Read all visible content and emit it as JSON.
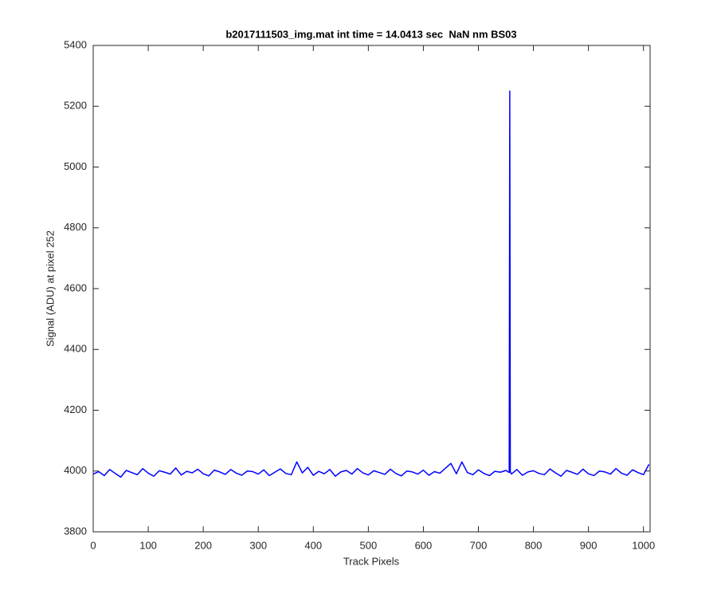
{
  "chart_data": {
    "type": "line",
    "title": "b2017111503_img.mat int time = 14.0413 sec  NaN nm BS03",
    "xlabel": "Track Pixels",
    "ylabel": "Signal (ADU) at pixel 252",
    "x": [
      0,
      10,
      20,
      30,
      40,
      50,
      60,
      70,
      80,
      90,
      100,
      110,
      120,
      130,
      140,
      150,
      160,
      170,
      180,
      190,
      200,
      210,
      220,
      230,
      240,
      250,
      260,
      270,
      280,
      290,
      300,
      310,
      320,
      330,
      340,
      350,
      360,
      370,
      380,
      390,
      400,
      410,
      420,
      430,
      440,
      450,
      460,
      470,
      480,
      490,
      500,
      510,
      520,
      530,
      540,
      550,
      560,
      570,
      580,
      590,
      600,
      610,
      620,
      630,
      640,
      650,
      660,
      670,
      680,
      690,
      700,
      710,
      720,
      730,
      740,
      750,
      756,
      757,
      758,
      760,
      770,
      780,
      790,
      800,
      810,
      820,
      830,
      840,
      850,
      860,
      870,
      880,
      890,
      900,
      910,
      920,
      930,
      940,
      950,
      960,
      970,
      980,
      990,
      1000,
      1010
    ],
    "series": [
      {
        "name": "signal",
        "color": "#0000ff",
        "values": [
          3990,
          3998,
          3985,
          4005,
          3992,
          3980,
          4002,
          3995,
          3988,
          4008,
          3993,
          3983,
          4001,
          3996,
          3990,
          4010,
          3987,
          3999,
          3994,
          4006,
          3991,
          3984,
          4003,
          3997,
          3989,
          4005,
          3993,
          3986,
          4000,
          3998,
          3990,
          4004,
          3985,
          3996,
          4007,
          3992,
          3988,
          4030,
          3994,
          4012,
          3986,
          3999,
          3991,
          4005,
          3983,
          3997,
          4002,
          3990,
          4008,
          3994,
          3987,
          4001,
          3995,
          3989,
          4006,
          3992,
          3984,
          4000,
          3997,
          3990,
          4003,
          3986,
          3998,
          3993,
          4009,
          4025,
          3991,
          4030,
          3995,
          3988,
          4004,
          3992,
          3985,
          3999,
          3996,
          4002,
          3995,
          5250,
          3998,
          3990,
          4005,
          3986,
          3997,
          4001,
          3992,
          3988,
          4007,
          3994,
          3983,
          4002,
          3996,
          3989,
          4006,
          3991,
          3985,
          4000,
          3997,
          3990,
          4008,
          3993,
          3986,
          4004,
          3995,
          3988,
          4022
        ]
      }
    ],
    "xlim": [
      0,
      1012
    ],
    "ylim": [
      3800,
      5400
    ],
    "xticks": [
      0,
      100,
      200,
      300,
      400,
      500,
      600,
      700,
      800,
      900,
      1000
    ],
    "yticks": [
      3800,
      4000,
      4200,
      4400,
      4600,
      4800,
      5000,
      5200,
      5400
    ]
  }
}
